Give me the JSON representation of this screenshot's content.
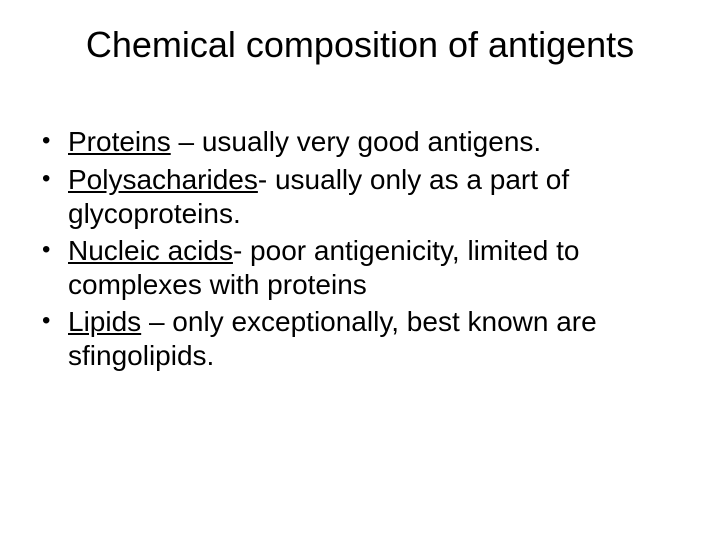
{
  "slide": {
    "title": "Chemical composition of antigents",
    "title_fontsize": 36,
    "title_color": "#000000",
    "body_fontsize": 28,
    "body_color": "#000000",
    "background_color": "#ffffff",
    "font_family": "Arial",
    "bullets": [
      {
        "term": "Proteins",
        "rest": " – usually very good antigens."
      },
      {
        "term": "Polysacharides",
        "rest": "- usually only as a part of glycoproteins."
      },
      {
        "term": "Nucleic acids",
        "rest": "- poor antigenicity, limited to complexes with proteins"
      },
      {
        "term": "Lipids",
        "rest": " – only exceptionally, best known are sfingolipids."
      }
    ]
  }
}
